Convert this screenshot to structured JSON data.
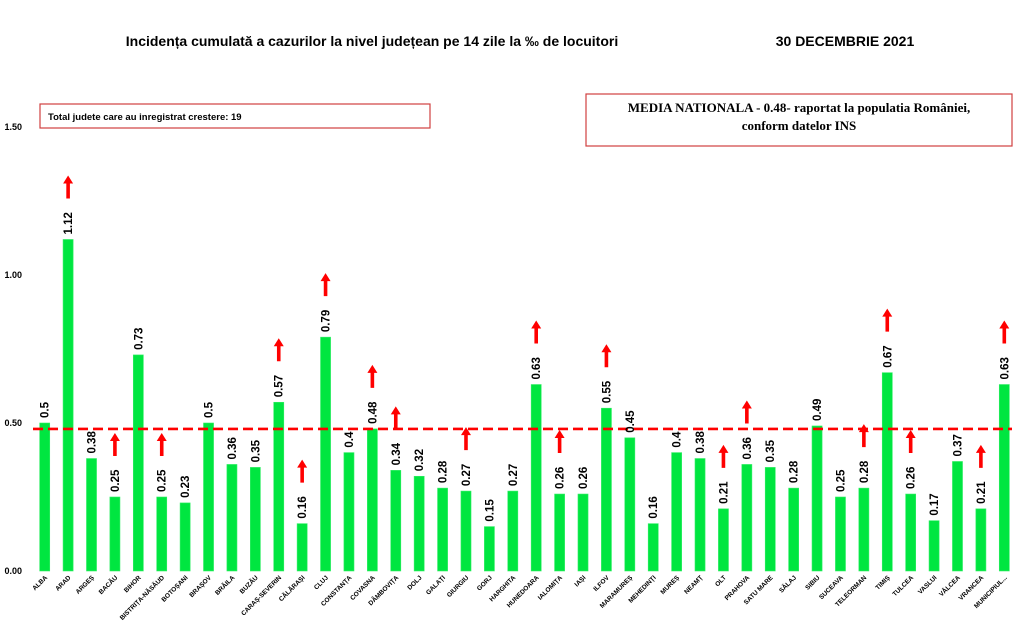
{
  "chart_data": {
    "type": "bar",
    "title": "Incidența cumulată a cazurilor la nivel județean pe 14 zile la ‰ de locuitori",
    "date_label": "30 DECEMBRIE 2021",
    "ylim": [
      0,
      1.5
    ],
    "yticks": [
      0.0,
      0.5,
      1.0,
      1.5
    ],
    "ytick_labels": [
      "0.00",
      "0.50",
      "1.00",
      "1.50"
    ],
    "grid": false,
    "bar_color": "#00e640",
    "bar_edge_color": "#33ee66",
    "arrow_color": "#ff0000",
    "reference_line": {
      "value": 0.48,
      "color": "#ff0000",
      "style": "dashed"
    },
    "info_box_left": "Total judete care au inregistrat crestere: 19",
    "info_box_right": [
      "MEDIA NATIONALA - 0.48-  raportat la populatia României,",
      "conform datelor INS"
    ],
    "categories": [
      "ALBA",
      "ARAD",
      "ARGEȘ",
      "BACĂU",
      "BIHOR",
      "BISTRIȚA-NĂSĂUD",
      "BOTOȘANI",
      "BRAȘOV",
      "BRĂILA",
      "BUZĂU",
      "CARAȘ-SEVERIN",
      "CĂLĂRAȘI",
      "CLUJ",
      "CONSTANȚA",
      "COVASNA",
      "DÂMBOVIȚA",
      "DOLJ",
      "GALAȚI",
      "GIURGIU",
      "GORJ",
      "HARGHITA",
      "HUNEDOARA",
      "IALOMIȚA",
      "IAȘI",
      "ILFOV",
      "MARAMUREȘ",
      "MEHEDINȚI",
      "MUREȘ",
      "NEAMȚ",
      "OLT",
      "PRAHOVA",
      "SATU MARE",
      "SĂLAJ",
      "SIBIU",
      "SUCEAVA",
      "TELEORMAN",
      "TIMIȘ",
      "TULCEA",
      "VASLUI",
      "VÂLCEA",
      "VRANCEA",
      "MUNICIPIUL..."
    ],
    "values": [
      0.5,
      1.12,
      0.38,
      0.25,
      0.73,
      0.25,
      0.23,
      0.5,
      0.36,
      0.35,
      0.57,
      0.16,
      0.79,
      0.4,
      0.48,
      0.34,
      0.32,
      0.28,
      0.27,
      0.15,
      0.27,
      0.63,
      0.26,
      0.26,
      0.55,
      0.45,
      0.16,
      0.4,
      0.38,
      0.21,
      0.36,
      0.35,
      0.28,
      0.49,
      0.25,
      0.28,
      0.67,
      0.26,
      0.17,
      0.37,
      0.21,
      0.63
    ],
    "value_labels": [
      "0.5",
      "1.12",
      "0.38",
      "0.25",
      "0.73",
      "0.25",
      "0.23",
      "0.5",
      "0.36",
      "0.35",
      "0.57",
      "0.16",
      "0.79",
      "0.4",
      "0.48",
      "0.34",
      "0.32",
      "0.28",
      "0.27",
      "0.15",
      "0.27",
      "0.63",
      "0.26",
      "0.26",
      "0.55",
      "0.45",
      "0.16",
      "0.4",
      "0.38",
      "0.21",
      "0.36",
      "0.35",
      "0.28",
      "0.49",
      "0.25",
      "0.28",
      "0.67",
      "0.26",
      "0.17",
      "0.37",
      "0.21",
      "0.63"
    ],
    "increase": [
      false,
      true,
      false,
      true,
      false,
      true,
      false,
      false,
      false,
      false,
      true,
      true,
      true,
      false,
      true,
      true,
      false,
      false,
      true,
      false,
      false,
      true,
      true,
      false,
      true,
      false,
      false,
      false,
      false,
      true,
      true,
      false,
      false,
      false,
      false,
      true,
      true,
      true,
      false,
      false,
      true,
      true
    ]
  }
}
